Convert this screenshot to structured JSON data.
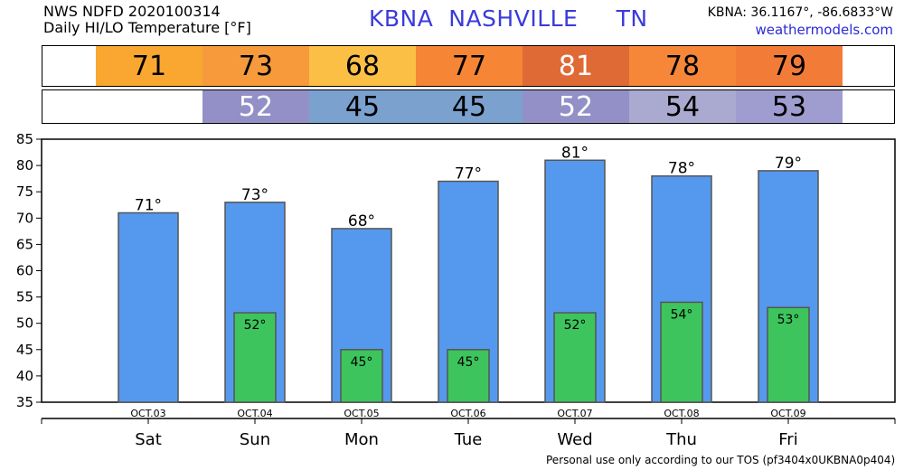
{
  "header": {
    "line1": "NWS NDFD 2020100314",
    "line2": "Daily HI/LO Temperature [°F]",
    "station": "KBNA  NASHVILLE     TN",
    "coords": "KBNA: 36.1167°, -86.6833°W",
    "site": "weathermodels.com"
  },
  "hi_strip": [
    {
      "value": "71",
      "color": "#f9a731",
      "text_color": "#000000"
    },
    {
      "value": "73",
      "color": "#f79a3c",
      "text_color": "#000000"
    },
    {
      "value": "68",
      "color": "#fbbf45",
      "text_color": "#000000"
    },
    {
      "value": "77",
      "color": "#f68535",
      "text_color": "#000000"
    },
    {
      "value": "81",
      "color": "#e06a35",
      "text_color": "#ffffff"
    },
    {
      "value": "78",
      "color": "#f68739",
      "text_color": "#000000"
    },
    {
      "value": "79",
      "color": "#f37b38",
      "text_color": "#000000"
    }
  ],
  "lo_strip": [
    {
      "value": "",
      "color": "#ffffff",
      "text_color": "#000000"
    },
    {
      "value": "52",
      "color": "#9390c8",
      "text_color": "#ffffff"
    },
    {
      "value": "45",
      "color": "#7ba1cf",
      "text_color": "#000000"
    },
    {
      "value": "45",
      "color": "#7ba1cf",
      "text_color": "#000000"
    },
    {
      "value": "52",
      "color": "#9390c8",
      "text_color": "#ffffff"
    },
    {
      "value": "54",
      "color": "#aaa9cf",
      "text_color": "#000000"
    },
    {
      "value": "53",
      "color": "#9f9dd0",
      "text_color": "#000000"
    }
  ],
  "chart_data": {
    "type": "bar",
    "categories": [
      "Sat",
      "Sun",
      "Mon",
      "Tue",
      "Wed",
      "Thu",
      "Fri"
    ],
    "dates": [
      "OCT.03",
      "OCT.04",
      "OCT.05",
      "OCT.06",
      "OCT.07",
      "OCT.08",
      "OCT.09"
    ],
    "series": [
      {
        "values": [
          71,
          73,
          68,
          77,
          81,
          78,
          79
        ],
        "color": "#5599ee"
      },
      {
        "values": [
          null,
          52,
          45,
          45,
          52,
          54,
          53
        ],
        "color": "#3dc45c"
      }
    ],
    "ylim": [
      35,
      85
    ],
    "yticks": [
      35,
      40,
      45,
      50,
      55,
      60,
      65,
      70,
      75,
      80,
      85
    ],
    "grid": false,
    "label_suffix": "°"
  },
  "footer": "Personal use only according to our TOS (pf3404x0UKBNA0p404)"
}
